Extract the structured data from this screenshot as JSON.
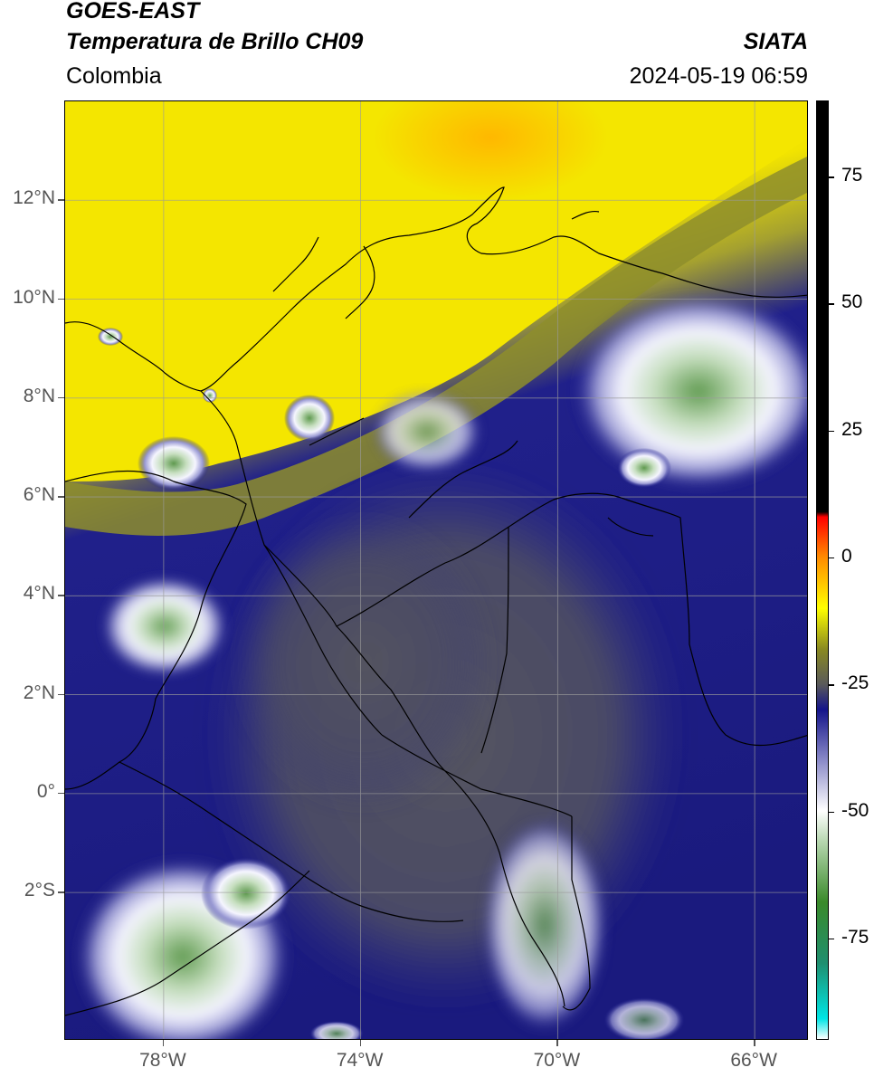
{
  "header": {
    "satellite": "GOES-EAST",
    "product": "Temperatura de Brillo CH09",
    "region": "Colombia",
    "source": "SIATA",
    "timestamp": "2024-05-19 06:59"
  },
  "map": {
    "extent": {
      "lon_min": -80.0,
      "lon_max": -64.9,
      "lat_min": -5.0,
      "lat_max": 14.0
    },
    "lat_ticks": [
      {
        "value": 12,
        "label": "12°N"
      },
      {
        "value": 10,
        "label": "10°N"
      },
      {
        "value": 8,
        "label": "8°N"
      },
      {
        "value": 6,
        "label": "6°N"
      },
      {
        "value": 4,
        "label": "4°N"
      },
      {
        "value": 2,
        "label": "2°N"
      },
      {
        "value": 0,
        "label": "0°"
      },
      {
        "value": -2,
        "label": "2°S"
      }
    ],
    "lon_ticks": [
      {
        "value": -78,
        "label": "78°W"
      },
      {
        "value": -74,
        "label": "74°W"
      },
      {
        "value": -70,
        "label": "70°W"
      },
      {
        "value": -66,
        "label": "66°W"
      }
    ]
  },
  "colorbar": {
    "range": [
      -95,
      90
    ],
    "ticks": [
      {
        "value": 75,
        "label": "75"
      },
      {
        "value": 50,
        "label": "50"
      },
      {
        "value": 25,
        "label": "25"
      },
      {
        "value": 0,
        "label": "0"
      },
      {
        "value": -25,
        "label": "-25"
      },
      {
        "value": -50,
        "label": "-50"
      },
      {
        "value": -75,
        "label": "-75"
      }
    ],
    "stops": [
      {
        "value": -95,
        "color": "#ffffff"
      },
      {
        "value": -91,
        "color": "#00e5e5"
      },
      {
        "value": -80,
        "color": "#1f8f6f"
      },
      {
        "value": -68,
        "color": "#3a8a2a"
      },
      {
        "value": -56,
        "color": "#b7d7b0"
      },
      {
        "value": -50,
        "color": "#ffffff"
      },
      {
        "value": -40,
        "color": "#8a8ac8"
      },
      {
        "value": -30,
        "color": "#14148a"
      },
      {
        "value": -25,
        "color": "#5a5a5a"
      },
      {
        "value": -18,
        "color": "#8a8a20"
      },
      {
        "value": -10,
        "color": "#ffff00"
      },
      {
        "value": 0,
        "color": "#ff8c00"
      },
      {
        "value": 8,
        "color": "#ff0000"
      },
      {
        "value": 9,
        "color": "#000000"
      },
      {
        "value": 90,
        "color": "#000000"
      }
    ]
  },
  "colors": {
    "clear_warm": "#ffff00",
    "deep_cold": "#0c0c88",
    "mid_gray": "#4a4a5a",
    "cloud_top_white": "#f4f4ff",
    "cold_core_green": "#4a8a3a",
    "coastline": "#000000"
  }
}
